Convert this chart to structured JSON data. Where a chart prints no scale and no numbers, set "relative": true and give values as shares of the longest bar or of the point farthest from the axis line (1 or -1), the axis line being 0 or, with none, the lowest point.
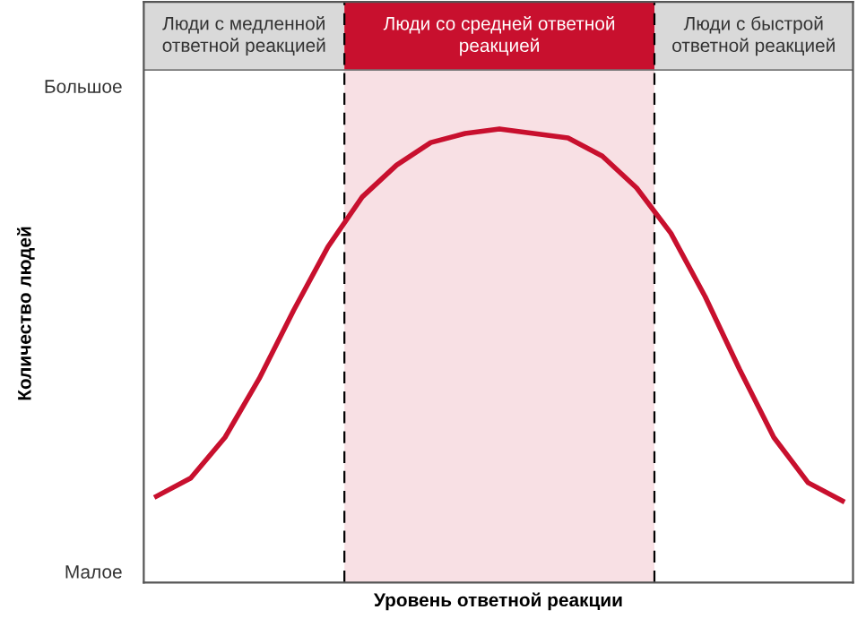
{
  "chart_data": {
    "type": "line",
    "relative": true,
    "xlabel": "Уровень ответной реакции",
    "categories": [
      null,
      null,
      null,
      null,
      null,
      null,
      null,
      null,
      null,
      null,
      null,
      null,
      null,
      null,
      null,
      null,
      null,
      null,
      null,
      null,
      null
    ],
    "series": [
      {
        "color": "#c8102e",
        "values": [
          0.19,
          0.23,
          0.32,
          0.45,
          0.6,
          0.74,
          0.85,
          0.92,
          0.97,
          0.99,
          1,
          0.99,
          0.98,
          0.94,
          0.87,
          0.77,
          0.63,
          0.47,
          0.32,
          0.22,
          0.18
        ]
      }
    ],
    "annotations": [
      "Люди с медленной\nответной реакцией",
      "Люди со средней ответной\nреакцией",
      "Люди с быстрой\nответной реакцией",
      "Большое",
      "Малое",
      "Количество людей"
    ],
    "legend": false,
    "marker": "none",
    "line_style": "solid"
  }
}
